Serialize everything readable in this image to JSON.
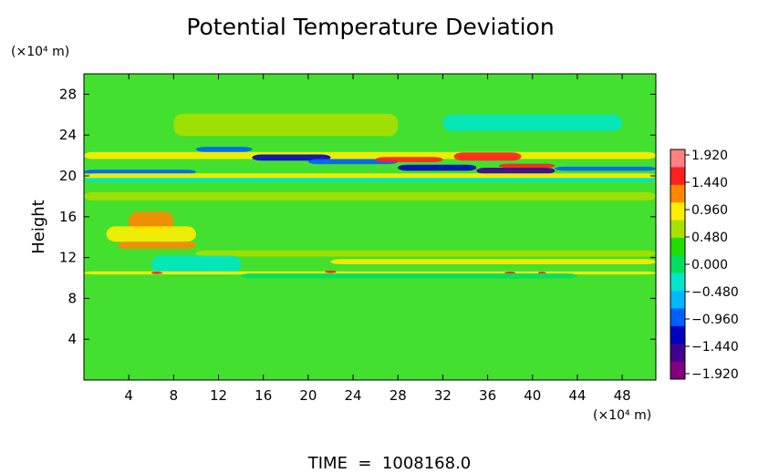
{
  "chart_data": {
    "type": "heatmap",
    "title": "Potential Temperature Deviation",
    "ylabel": "Height",
    "y_unit": "(×10⁴ m)",
    "x_unit": "(×10⁴ m)",
    "footer": "TIME  =  1008168.0",
    "xlim": [
      0,
      51
    ],
    "ylim": [
      0,
      30
    ],
    "x_ticks": [
      4,
      8,
      12,
      16,
      20,
      24,
      28,
      32,
      36,
      40,
      44,
      48
    ],
    "y_ticks": [
      4,
      8,
      12,
      16,
      20,
      24,
      28
    ],
    "colorbar": {
      "labels": [
        "1.920",
        "1.440",
        "0.960",
        "0.480",
        "0.000",
        "−0.480",
        "−0.960",
        "−1.440",
        "−1.920"
      ],
      "values": [
        1.92,
        1.44,
        0.96,
        0.48,
        0.0,
        -0.48,
        -0.96,
        -1.44,
        -1.92
      ],
      "range": [
        -1.92,
        1.92
      ],
      "colors_top_to_bottom": [
        "#ff8080",
        "#ff2020",
        "#ff8800",
        "#ffee00",
        "#a8e000",
        "#22dd00",
        "#00e060",
        "#00e8c8",
        "#00b8ff",
        "#0060ff",
        "#0000c0",
        "#400090",
        "#800080"
      ]
    },
    "background_color": "#44e030",
    "bands": [
      {
        "y": 25.0,
        "dy": 2.2,
        "x0": 8,
        "x1": 28,
        "color": "#a8e000",
        "value": 0.5
      },
      {
        "y": 25.2,
        "dy": 1.6,
        "x0": 32,
        "x1": 48,
        "color": "#00e8c8",
        "value": -0.55
      },
      {
        "y": 22.0,
        "dy": 0.7,
        "x0": 0,
        "x1": 51,
        "color": "#ffee00",
        "value": 0.9
      },
      {
        "y": 22.6,
        "dy": 0.5,
        "x0": 10,
        "x1": 15,
        "color": "#0060ff",
        "value": -1.3
      },
      {
        "y": 21.8,
        "dy": 0.6,
        "x0": 15,
        "x1": 22,
        "color": "#0000c0",
        "value": -1.6
      },
      {
        "y": 21.4,
        "dy": 0.5,
        "x0": 20,
        "x1": 28,
        "color": "#0060ff",
        "value": -1.3
      },
      {
        "y": 21.6,
        "dy": 0.5,
        "x0": 26,
        "x1": 32,
        "color": "#ff2020",
        "value": 1.5
      },
      {
        "y": 21.9,
        "dy": 0.8,
        "x0": 33,
        "x1": 39,
        "color": "#ff2020",
        "value": 1.6
      },
      {
        "y": 20.8,
        "dy": 0.6,
        "x0": 28,
        "x1": 35,
        "color": "#0000c0",
        "value": -1.6
      },
      {
        "y": 20.5,
        "dy": 0.6,
        "x0": 35,
        "x1": 42,
        "color": "#400090",
        "value": -1.8
      },
      {
        "y": 21.0,
        "dy": 0.4,
        "x0": 37,
        "x1": 42,
        "color": "#ff2020",
        "value": 1.5
      },
      {
        "y": 20.7,
        "dy": 0.4,
        "x0": 42,
        "x1": 51,
        "color": "#0060ff",
        "value": -1.2
      },
      {
        "y": 20.4,
        "dy": 0.4,
        "x0": 0,
        "x1": 10,
        "color": "#0060ff",
        "value": -1.1
      },
      {
        "y": 20.0,
        "dy": 0.5,
        "x0": 0,
        "x1": 51,
        "color": "#ffee00",
        "value": 0.8
      },
      {
        "y": 19.6,
        "dy": 0.4,
        "x0": 0,
        "x1": 51,
        "color": "#00e8c8",
        "value": -0.5
      },
      {
        "y": 18.0,
        "dy": 0.8,
        "x0": 0,
        "x1": 51,
        "color": "#a8e000",
        "value": 0.4
      },
      {
        "y": 15.5,
        "dy": 2.0,
        "x0": 4,
        "x1": 8,
        "color": "#ff8800",
        "value": 1.1
      },
      {
        "y": 14.3,
        "dy": 1.5,
        "x0": 2,
        "x1": 10,
        "color": "#ffee00",
        "value": 0.8
      },
      {
        "y": 13.2,
        "dy": 0.7,
        "x0": 3,
        "x1": 10,
        "color": "#ff8800",
        "value": 1.0
      },
      {
        "y": 12.4,
        "dy": 0.6,
        "x0": 10,
        "x1": 51,
        "color": "#a8e000",
        "value": 0.4
      },
      {
        "y": 11.3,
        "dy": 1.8,
        "x0": 6,
        "x1": 14,
        "color": "#00e8c8",
        "value": -0.5
      },
      {
        "y": 11.6,
        "dy": 0.5,
        "x0": 22,
        "x1": 51,
        "color": "#ffee00",
        "value": 0.7
      },
      {
        "y": 10.5,
        "dy": 0.3,
        "x0": 0,
        "x1": 51,
        "color": "#ffee00",
        "value": 0.8
      },
      {
        "y": 10.5,
        "dy": 0.25,
        "x0": 6,
        "x1": 7,
        "color": "#ff2020",
        "value": 1.5
      },
      {
        "y": 10.6,
        "dy": 0.25,
        "x0": 21.5,
        "x1": 22.5,
        "color": "#ff2020",
        "value": 1.5
      },
      {
        "y": 10.5,
        "dy": 0.25,
        "x0": 37.5,
        "x1": 38.5,
        "color": "#ff2020",
        "value": 1.4
      },
      {
        "y": 10.5,
        "dy": 0.25,
        "x0": 40.5,
        "x1": 41.2,
        "color": "#ff2020",
        "value": 1.4
      },
      {
        "y": 10.2,
        "dy": 0.5,
        "x0": 14,
        "x1": 44,
        "color": "#00e060",
        "value": -0.2
      }
    ]
  }
}
